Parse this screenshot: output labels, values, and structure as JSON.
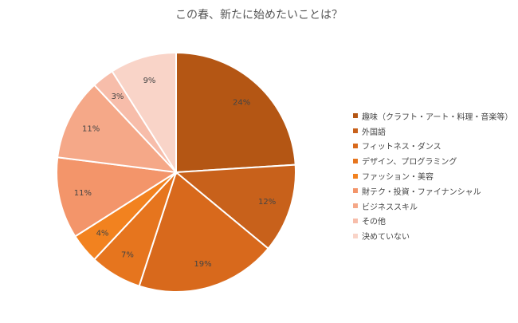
{
  "chart_data": {
    "type": "pie",
    "title": "この春、新たに始めたいことは？",
    "categories": [
      "趣味（クラフト・アート・料理・音楽等）",
      "外国語",
      "フィットネス・ダンス",
      "デザイン、プログラミング",
      "ファッション・美容",
      "財テク・投資・ファイナンシャル",
      "ビジネススキル",
      "その他",
      "決めていない"
    ],
    "values": [
      24,
      12,
      19,
      7,
      4,
      11,
      11,
      3,
      9
    ],
    "labels": [
      "24%",
      "12%",
      "19%",
      "7%",
      "4%",
      "11%",
      "11%",
      "3%",
      "9%"
    ],
    "colors": [
      "#b45614",
      "#c8611b",
      "#d8691c",
      "#e6751e",
      "#f2821f",
      "#f3956a",
      "#f5a888",
      "#f7bdaa",
      "#f9d4c8"
    ],
    "legend_position": "right"
  }
}
